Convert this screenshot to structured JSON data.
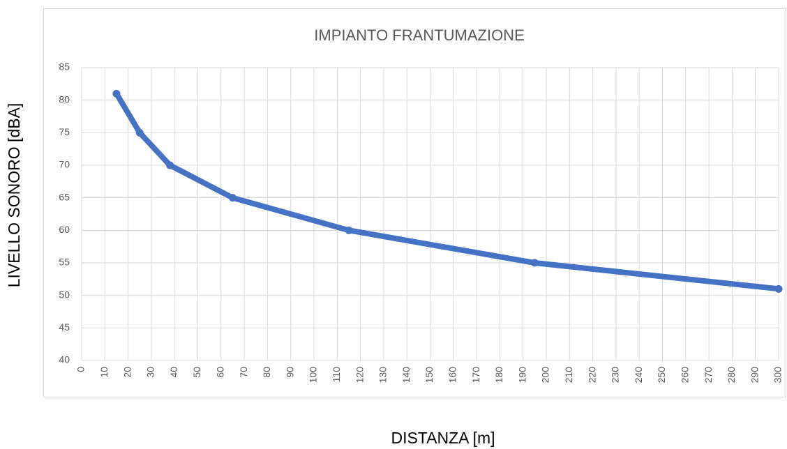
{
  "chart_data": {
    "type": "line",
    "title": "IMPIANTO FRANTUMAZIONE",
    "x_label": "DISTANZA [m]",
    "y_label": "LIVELLO SONORO [dBA]",
    "x": [
      15,
      25,
      38,
      65,
      115,
      195,
      300
    ],
    "values": [
      81,
      75,
      70,
      65,
      60,
      55,
      51
    ],
    "color": "#4472c4",
    "xlim": [
      0,
      300
    ],
    "xticks": [
      0,
      10,
      20,
      30,
      40,
      50,
      60,
      70,
      80,
      90,
      100,
      110,
      120,
      130,
      140,
      150,
      160,
      170,
      180,
      190,
      200,
      210,
      220,
      230,
      240,
      250,
      260,
      270,
      280,
      290,
      300
    ],
    "ylim": [
      40,
      85
    ],
    "yticks": [
      40,
      45,
      50,
      55,
      60,
      65,
      70,
      75,
      80,
      85
    ],
    "grid": true
  }
}
